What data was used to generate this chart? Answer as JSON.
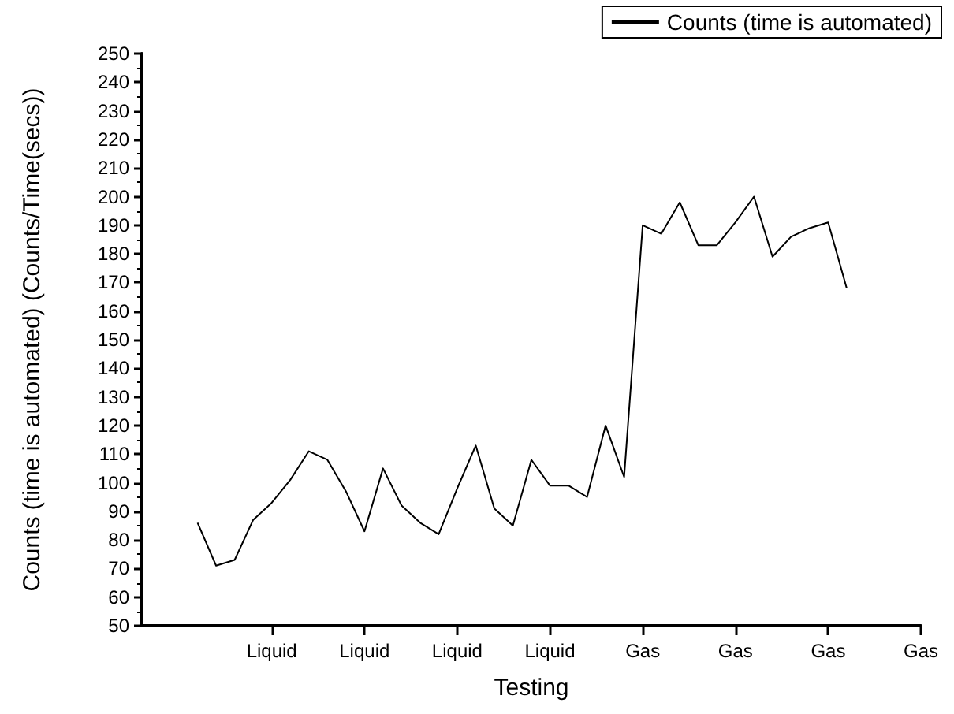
{
  "chart_data": {
    "type": "line",
    "xlabel": "Testing",
    "ylabel": "Counts (time is automated) (Counts/Time(secs))",
    "categories": [
      null,
      null,
      null,
      null,
      null,
      null,
      null,
      "Liquid",
      null,
      null,
      null,
      null,
      "Liquid",
      null,
      null,
      null,
      null,
      "Liquid",
      null,
      null,
      null,
      null,
      "Liquid",
      null,
      null,
      null,
      null,
      "Gas",
      null,
      null,
      null,
      null,
      "Gas",
      null,
      null,
      null,
      null,
      "Gas",
      null,
      null,
      null,
      null,
      "Gas"
    ],
    "series": [
      {
        "name": "Counts (time is automated)",
        "color": "#000000",
        "values": [
          null,
          null,
          null,
          86,
          71,
          73,
          87,
          93,
          101,
          111,
          108,
          97,
          83,
          105,
          92,
          86,
          82,
          98,
          113,
          91,
          85,
          108,
          99,
          99,
          95,
          120,
          102,
          190,
          187,
          198,
          183,
          183,
          191,
          200,
          179,
          186,
          189,
          191,
          168,
          null,
          null,
          null,
          null
        ]
      }
    ],
    "ylim": [
      50,
      250
    ],
    "yticks": [
      50,
      60,
      70,
      80,
      90,
      100,
      110,
      120,
      130,
      140,
      150,
      160,
      170,
      180,
      190,
      200,
      210,
      220,
      230,
      240,
      250
    ],
    "legend": "top right",
    "marker": "none",
    "line_style": "solid"
  }
}
